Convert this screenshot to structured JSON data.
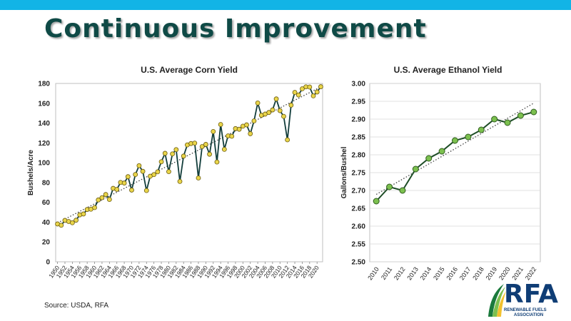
{
  "slide": {
    "title": "Continuous Improvement",
    "source": "Source: USDA, RFA"
  },
  "colors": {
    "topbar": "#12b4e6",
    "title": "#0f4a46",
    "corn_line": "#123d3b",
    "corn_marker": "#e9d54a",
    "ethanol_line": "#1e4d26",
    "ethanol_marker": "#7cc04f"
  },
  "logo": {
    "text": "RFA",
    "subtitle_line1": "RENEWABLE FUELS",
    "subtitle_line2": "ASSOCIATION",
    "icon": "rfa-swoosh-icon"
  },
  "chart_data": [
    {
      "type": "line",
      "title": "U.S. Average Corn Yield",
      "xlabel": "",
      "ylabel": "Bushels/Acre",
      "ylim": [
        0,
        180
      ],
      "yticks": [
        0,
        20,
        40,
        60,
        80,
        100,
        120,
        140,
        160,
        180
      ],
      "xticks": [
        "1950",
        "1952",
        "1954",
        "1956",
        "1958",
        "1960",
        "1962",
        "1964",
        "1966",
        "1968",
        "1970",
        "1972",
        "1974",
        "1976",
        "1978",
        "1980",
        "1982",
        "1984",
        "1986",
        "1988",
        "1990",
        "1992",
        "1994",
        "1996",
        "1998",
        "2000",
        "2002",
        "2004",
        "2006",
        "2008",
        "2010",
        "2012",
        "2014",
        "2016",
        "2018",
        "2020"
      ],
      "trendline": "linear-dotted",
      "grid": false,
      "series": [
        {
          "x": [
            1950,
            1951,
            1952,
            1953,
            1954,
            1955,
            1956,
            1957,
            1958,
            1959,
            1960,
            1961,
            1962,
            1963,
            1964,
            1965,
            1966,
            1967,
            1968,
            1969,
            1970,
            1971,
            1972,
            1973,
            1974,
            1975,
            1976,
            1977,
            1978,
            1979,
            1980,
            1981,
            1982,
            1983,
            1984,
            1985,
            1986,
            1987,
            1988,
            1989,
            1990,
            1991,
            1992,
            1993,
            1994,
            1995,
            1996,
            1997,
            1998,
            1999,
            2000,
            2001,
            2002,
            2003,
            2004,
            2005,
            2006,
            2007,
            2008,
            2009,
            2010,
            2011,
            2012,
            2013,
            2014,
            2015,
            2016,
            2017,
            2018,
            2019,
            2020,
            2021
          ],
          "values": [
            38.2,
            36.9,
            41.8,
            40.7,
            39.4,
            42.0,
            47.4,
            48.3,
            52.8,
            53.1,
            54.7,
            62.4,
            64.7,
            67.9,
            62.9,
            74.1,
            73.1,
            80.1,
            79.5,
            85.9,
            72.4,
            88.1,
            97.0,
            91.3,
            71.9,
            86.4,
            88.0,
            90.8,
            101.0,
            109.5,
            91.0,
            108.9,
            113.2,
            81.1,
            106.7,
            118.0,
            119.4,
            119.8,
            84.6,
            116.3,
            118.5,
            108.6,
            131.5,
            100.7,
            138.6,
            113.5,
            127.1,
            126.7,
            134.4,
            133.8,
            136.9,
            138.2,
            129.3,
            142.2,
            160.3,
            147.9,
            149.1,
            150.7,
            153.3,
            164.4,
            152.6,
            146.8,
            123.1,
            158.1,
            171.0,
            168.4,
            174.6,
            176.6,
            176.4,
            167.5,
            171.4,
            176.7
          ]
        }
      ]
    },
    {
      "type": "line",
      "title": "U.S. Average Ethanol Yield",
      "xlabel": "",
      "ylabel": "Gallons/Bushel",
      "ylim": [
        2.5,
        3.0
      ],
      "yticks": [
        "2.50",
        "2.55",
        "2.60",
        "2.65",
        "2.70",
        "2.75",
        "2.80",
        "2.85",
        "2.90",
        "2.95",
        "3.00"
      ],
      "trendline": "linear-dotted",
      "grid": true,
      "series": [
        {
          "x": [
            "2010",
            "2011",
            "2012",
            "2013",
            "2014",
            "2015",
            "2016",
            "2017",
            "2018",
            "2019",
            "2020",
            "2021",
            "2022"
          ],
          "values": [
            2.67,
            2.71,
            2.7,
            2.76,
            2.79,
            2.81,
            2.84,
            2.85,
            2.87,
            2.9,
            2.89,
            2.91,
            2.92
          ]
        }
      ]
    }
  ]
}
